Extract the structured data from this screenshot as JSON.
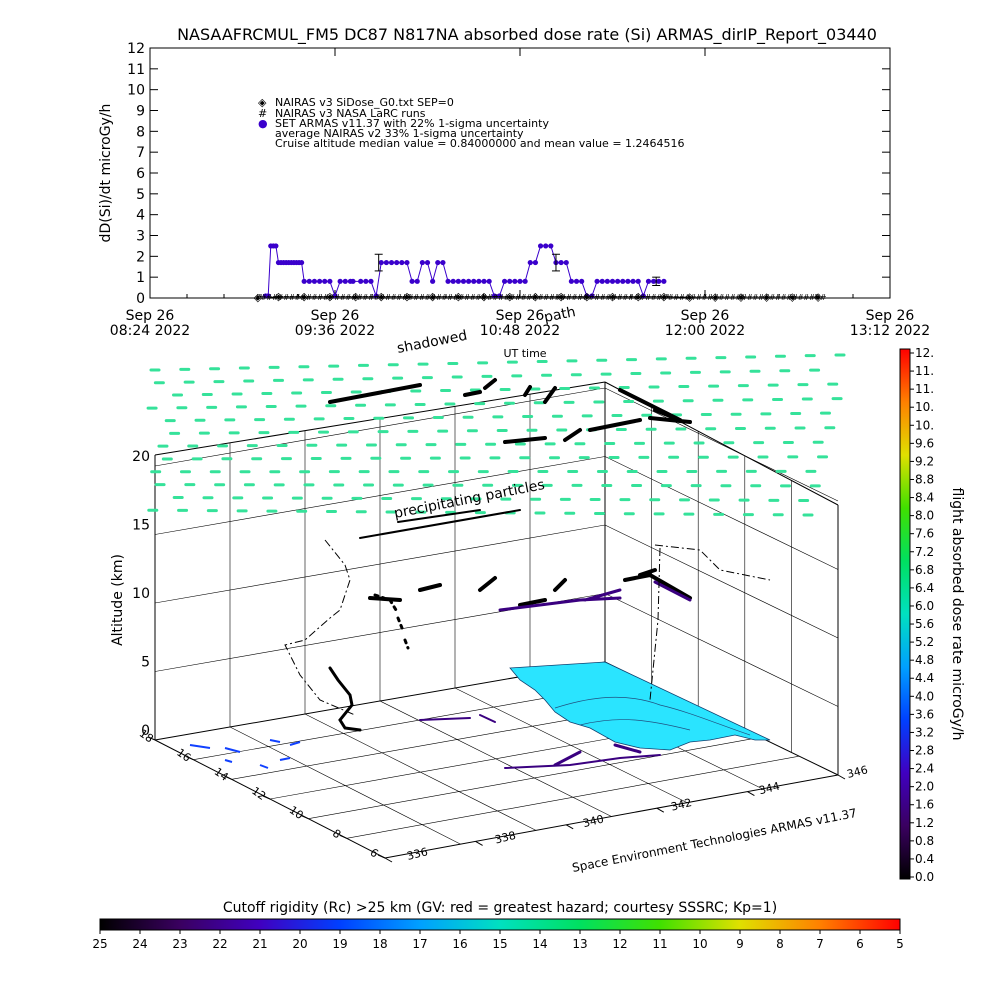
{
  "title": "NASAAFRCMUL_FM5 DC87 N817NA absorbed dose rate (Si) ARMAS_dirIP_Report_03440",
  "chart_data": [
    {
      "type": "line",
      "title": "NASAAFRCMUL_FM5 DC87 N817NA absorbed dose rate (Si) ARMAS_dirIP_Report_03440",
      "ylabel": "dD(Si)/dt microGy/h",
      "xlabel": "UT time",
      "ylim": [
        0,
        12
      ],
      "yticks": [
        "0",
        "1",
        "2",
        "3",
        "4",
        "5",
        "6",
        "7",
        "8",
        "9",
        "10",
        "11",
        "12"
      ],
      "xticks": [
        {
          "line1": "Sep 26",
          "line2": "08:24 2022"
        },
        {
          "line1": "Sep 26",
          "line2": "09:36 2022"
        },
        {
          "line1": "Sep 26",
          "line2": "10:48 2022"
        },
        {
          "line1": "Sep 26",
          "line2": "12:00 2022"
        },
        {
          "line1": "Sep 26",
          "line2": "13:12 2022"
        }
      ],
      "xlim_minutes_after_0824": [
        0,
        288
      ],
      "legend": [
        {
          "symbol": "◈",
          "text": "NAIRAS v3 SiDose_G0.txt SEP=0"
        },
        {
          "symbol": "#",
          "text": "NAIRAS v3 NASA LaRC runs"
        },
        {
          "symbol": "●",
          "text": "SET ARMAS v11.37 with 22% 1-sigma uncertainty"
        },
        {
          "symbol": "",
          "text": "average NAIRAS v2 33% 1-sigma uncertainty"
        },
        {
          "symbol": "",
          "text": "Cruise altitude median value = 0.84000000 and mean value = 1.2464516"
        }
      ],
      "series": [
        {
          "name": "SET ARMAS v11.37 with 22% 1-sigma uncertainty",
          "color": "#3a00cc",
          "x_minutes_after_0824": [
            45,
            46,
            47,
            48,
            49,
            50,
            51,
            52,
            53,
            54,
            55,
            56,
            57,
            58,
            59,
            60,
            62,
            64,
            66,
            68,
            70,
            72,
            74,
            76,
            78,
            79,
            82,
            84,
            86,
            88,
            90,
            92,
            94,
            96,
            98,
            100,
            102,
            104,
            106,
            108,
            110,
            112,
            114,
            116,
            118,
            120,
            122,
            124,
            126,
            128,
            130,
            132,
            134,
            136,
            138,
            140,
            142,
            144,
            146,
            148,
            150,
            152,
            154,
            156,
            158,
            160,
            162,
            164,
            166,
            168,
            170,
            172,
            174,
            176,
            178,
            180,
            182,
            184,
            186,
            188,
            190,
            192,
            194,
            196,
            198,
            200
          ],
          "values": [
            0.1,
            0.1,
            2.5,
            2.5,
            2.5,
            1.7,
            1.7,
            1.7,
            1.7,
            1.7,
            1.7,
            1.7,
            1.7,
            1.7,
            1.7,
            0.8,
            0.8,
            0.8,
            0.8,
            0.8,
            0.8,
            0.1,
            0.8,
            0.8,
            0.8,
            0.8,
            0.8,
            0.8,
            0.8,
            0.1,
            1.7,
            1.7,
            1.7,
            1.7,
            1.7,
            1.7,
            0.8,
            0.8,
            1.7,
            1.7,
            0.8,
            1.7,
            1.7,
            0.8,
            0.8,
            0.8,
            0.8,
            0.8,
            0.8,
            0.8,
            0.8,
            0.8,
            0.1,
            0.1,
            0.8,
            0.8,
            0.8,
            0.8,
            0.8,
            1.7,
            1.7,
            2.5,
            2.5,
            2.5,
            1.7,
            1.7,
            1.7,
            0.8,
            0.8,
            0.8,
            0.1,
            0.1,
            0.8,
            0.8,
            0.8,
            0.8,
            0.8,
            0.8,
            0.8,
            0.8,
            0.8,
            0.1,
            0.8,
            0.8,
            0.8,
            0.8
          ]
        },
        {
          "name": "NAIRAS v3 SiDose_G0.txt SEP=0",
          "color": "#000000",
          "x_minutes_after_0824": [
            42,
            50,
            60,
            70,
            80,
            90,
            100,
            110,
            120,
            130,
            140,
            150,
            160,
            170,
            180,
            190,
            200,
            210,
            220,
            230,
            240,
            250,
            260
          ],
          "values": [
            0.0,
            0.05,
            0.05,
            0.05,
            0.05,
            0.05,
            0.05,
            0.05,
            0.05,
            0.05,
            0.05,
            0.05,
            0.05,
            0.05,
            0.05,
            0.05,
            0.05,
            0.03,
            0.02,
            0.02,
            0.02,
            0.02,
            0.02
          ]
        }
      ],
      "error_bars": [
        {
          "x_minutes_after_0824": 89,
          "value": 1.7,
          "sigma": 0.4
        },
        {
          "x_minutes_after_0824": 158,
          "value": 1.7,
          "sigma": 0.4
        },
        {
          "x_minutes_after_0824": 197,
          "value": 0.8,
          "sigma": 0.2
        }
      ]
    },
    {
      "type": "scatter",
      "title": "",
      "zlabel": "Altitude (km)",
      "zticks": [
        "0",
        "5",
        "10",
        "15",
        "20"
      ],
      "x_ticks": [
        "336",
        "338",
        "340",
        "342",
        "344",
        "346"
      ],
      "y_ticks": [
        "6",
        "8",
        "10",
        "12",
        "14",
        "16",
        "18"
      ],
      "annotations": [
        "precipitating particles",
        "shadowed",
        "path"
      ],
      "colorbar": {
        "label": "flight absorbed dose rate microGy/h",
        "ticks": [
          "0.0",
          "0.4",
          "0.8",
          "1.2",
          "1.6",
          "2.0",
          "2.4",
          "2.8",
          "3.2",
          "3.6",
          "4.0",
          "4.4",
          "4.8",
          "5.2",
          "5.6",
          "6.0",
          "6.4",
          "6.8",
          "7.2",
          "7.6",
          "8.0",
          "8.4",
          "8.8",
          "9.2",
          "9.6",
          "10.",
          "10.",
          "11.",
          "11.",
          "12."
        ],
        "range": [
          0,
          12
        ]
      }
    }
  ],
  "credit": "Space Environment Technologies ARMAS v11.37",
  "bottom_colorbar": {
    "title": "Cutoff rigidity (Rc) >25 km (GV: red = greatest hazard; courtesy SSSRC; Kp=1)",
    "ticks": [
      "25",
      "24",
      "23",
      "22",
      "21",
      "20",
      "19",
      "18",
      "17",
      "16",
      "15",
      "14",
      "13",
      "12",
      "11",
      "10",
      "9",
      "8",
      "7",
      "6",
      "5"
    ]
  }
}
